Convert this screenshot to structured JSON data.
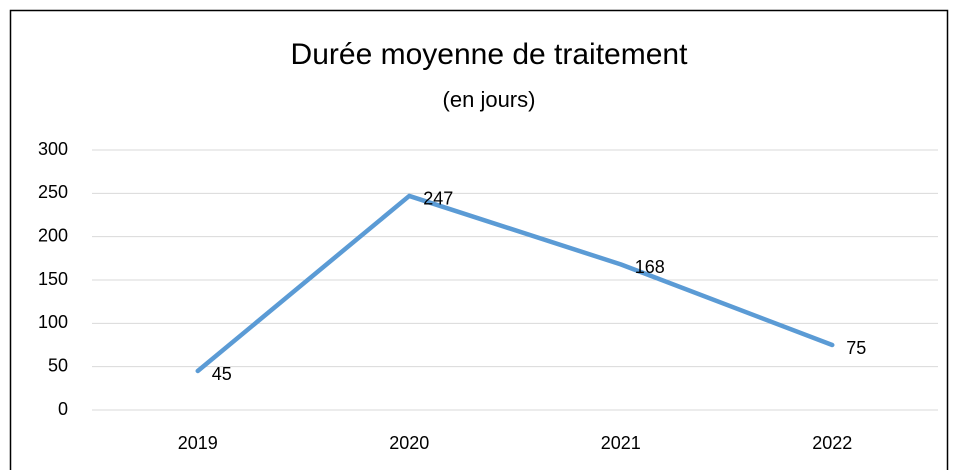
{
  "chart_data": {
    "type": "line",
    "title": "Durée moyenne de traitement",
    "subtitle": "(en jours)",
    "categories": [
      "2019",
      "2020",
      "2021",
      "2022"
    ],
    "values": [
      45,
      247,
      168,
      75
    ],
    "color": "#5b9bd5",
    "ylim": [
      0,
      300
    ],
    "yticks": [
      0,
      50,
      100,
      150,
      200,
      250,
      300
    ],
    "grid": true
  }
}
